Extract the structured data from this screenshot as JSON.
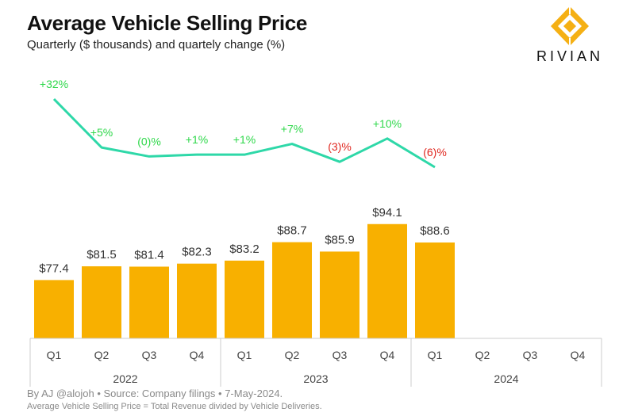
{
  "header": {
    "title": "Average Vehicle Selling Price",
    "subtitle": "Quarterly ($ thousands) and quartely change (%)"
  },
  "logo": {
    "text": "RIVIAN",
    "color": "#f5b014",
    "icon": "rivian-diamond-icon"
  },
  "footer": {
    "source": "By AJ @alojoh • Source: Company filings • 7-May-2024.",
    "note": "Average Vehicle Selling Price = Total Revenue divided by Vehicle Deliveries."
  },
  "colors": {
    "bar": "#f8b000",
    "line": "#2ed8a8",
    "positive": "#2ed84a",
    "negative": "#e0271f",
    "axis": "#cccccc"
  },
  "chart_data": {
    "type": "bar",
    "title": "Average Vehicle Selling Price",
    "subtitle": "Quarterly ($ thousands) and quartely change (%)",
    "categories": [
      "Q1",
      "Q2",
      "Q3",
      "Q4",
      "Q1",
      "Q2",
      "Q3",
      "Q4",
      "Q1",
      "Q2",
      "Q3",
      "Q4"
    ],
    "years": [
      {
        "label": "2022",
        "span": 4
      },
      {
        "label": "2023",
        "span": 4
      },
      {
        "label": "2024",
        "span": 4
      }
    ],
    "series": [
      {
        "type": "bar",
        "values": [
          77.4,
          81.5,
          81.4,
          82.3,
          83.2,
          88.7,
          85.9,
          94.1,
          88.6,
          null,
          null,
          null
        ],
        "labels": [
          "$77.4",
          "$81.5",
          "$81.4",
          "$82.3",
          "$83.2",
          "$88.7",
          "$85.9",
          "$94.1",
          "$88.6",
          "",
          "",
          ""
        ]
      },
      {
        "type": "line",
        "values": [
          32,
          5,
          0,
          1,
          1,
          7,
          -3,
          10,
          -6,
          null,
          null,
          null
        ],
        "labels": [
          "+32%",
          "+5%",
          "(0)%",
          "+1%",
          "+1%",
          "+7%",
          "(3)%",
          "+10%",
          "(6)%",
          "",
          "",
          ""
        ]
      }
    ],
    "grid": false,
    "legend": "none"
  }
}
